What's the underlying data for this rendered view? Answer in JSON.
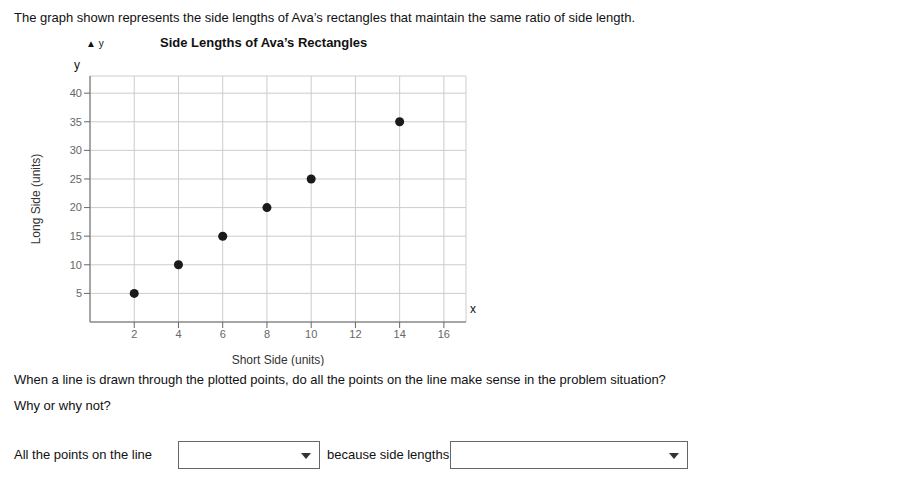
{
  "chart_data": {
    "type": "scatter",
    "title": "Side Lengths of Ava’s Rectangles",
    "x_label": "Short Side (units)",
    "y_label": "Long Side (units)",
    "x": [
      2,
      4,
      6,
      8,
      10,
      14
    ],
    "values": [
      5,
      10,
      15,
      20,
      25,
      35
    ],
    "color": "#1a1a1a",
    "xlim": [
      0,
      17
    ],
    "ylim": [
      0,
      43
    ],
    "xticks": [
      2,
      4,
      6,
      8,
      10,
      12,
      14,
      16
    ],
    "yticks": [
      5,
      10,
      15,
      20,
      25,
      30,
      35,
      40
    ],
    "grid": true,
    "annotations": [
      "▲ y",
      "y",
      "x",
      "The graph shown represents the side lengths of Ava’s rectangles that maintain the same ratio of side length.",
      "When a line is drawn through the plotted points, do all the points on the line make sense in the problem situation?",
      "Why or why not?",
      "All the points on the line",
      "because side lengths"
    ]
  }
}
